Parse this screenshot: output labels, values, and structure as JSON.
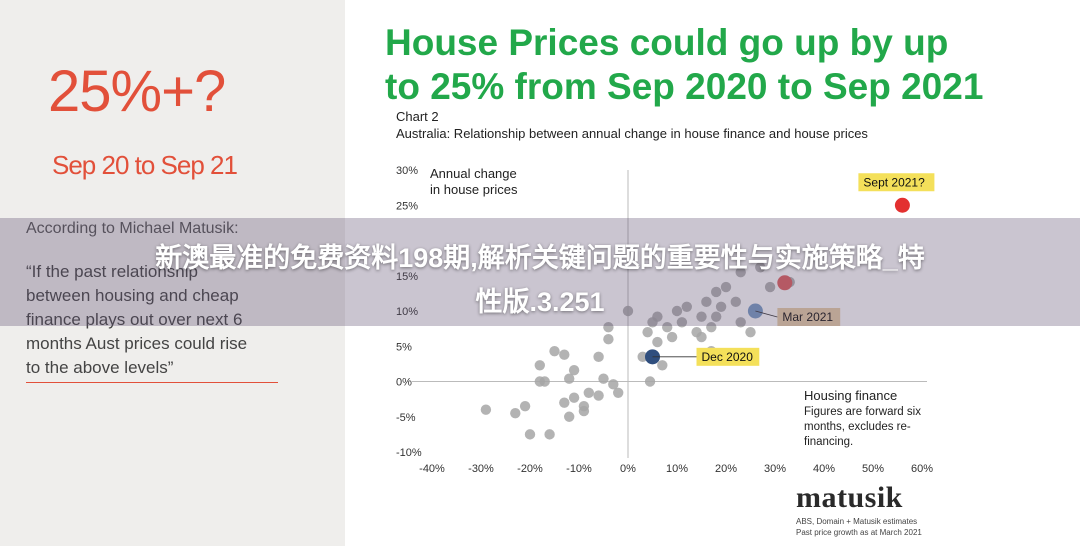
{
  "left": {
    "headline": "25%+?",
    "date_range": "Sep 20 to Sep 21",
    "attribution": "According to Michael Matusik:",
    "quote_lines": [
      "“If the past relationship",
      "between housing and cheap",
      "finance plays out over next 6",
      "months Aust prices could rise",
      "to the above levels”"
    ]
  },
  "title_lines": [
    "House Prices could go up by up",
    "to 25% from Sep 2020 to Sep 2021"
  ],
  "chart_label": "Chart 2",
  "chart_subtitle": "Australia: Relationship between annual change in house finance and house prices",
  "banner_lines": [
    "新澳最准的免费资料198期,解析关键问题的重要性与实施策略_特",
    "性版.3.251"
  ],
  "brand": {
    "name": "matusik",
    "source_lines": [
      "ABS, Domain + Matusik estimates",
      "Past price growth as at March 2021"
    ]
  },
  "colors": {
    "headline_red": "#e2503a",
    "title_green": "#22a84a",
    "grey_points": "#a6a6a6",
    "dec2020": "#2f4e7e",
    "mar2021": "#7a9cc6",
    "sept2021": "#e33030",
    "recent_red": "#e06060",
    "label_yellow": "#f4e05a",
    "label_tan": "#e8cfa8"
  },
  "chart_data": {
    "type": "scatter",
    "ylabel": [
      "Annual change",
      "in house prices"
    ],
    "xlabel": [
      "Housing finance",
      "Figures are forward six",
      "months, excludes re-",
      "financing."
    ],
    "xlim": [
      -40,
      60
    ],
    "ylim": [
      -10,
      30
    ],
    "x_ticks": [
      -40,
      -30,
      -20,
      -10,
      0,
      10,
      20,
      30,
      40,
      50,
      60
    ],
    "x_tick_labels": [
      "-40%",
      "-30%",
      "-20%",
      "-10%",
      "0%",
      "10%",
      "20%",
      "30%",
      "40%",
      "50%",
      "60%"
    ],
    "y_ticks": [
      30,
      25,
      15,
      10,
      5,
      0,
      -5,
      -10
    ],
    "y_tick_labels": [
      "30%",
      "25%",
      "15%",
      "10%",
      "5%",
      "0%",
      "-5%",
      "-10%"
    ],
    "points": [
      {
        "x": -29,
        "y": -4
      },
      {
        "x": -23,
        "y": -4.5
      },
      {
        "x": -21,
        "y": -3.5
      },
      {
        "x": -20,
        "y": -7.5
      },
      {
        "x": -16,
        "y": -7.5
      },
      {
        "x": -18,
        "y": 0
      },
      {
        "x": -17,
        "y": 0
      },
      {
        "x": -18,
        "y": 2.3
      },
      {
        "x": -15,
        "y": 4.3
      },
      {
        "x": -13,
        "y": 3.8
      },
      {
        "x": -11,
        "y": 1.6
      },
      {
        "x": -12,
        "y": 0.4
      },
      {
        "x": -11,
        "y": -2.3
      },
      {
        "x": -13,
        "y": -3
      },
      {
        "x": -9,
        "y": -3.5
      },
      {
        "x": -8,
        "y": -1.6
      },
      {
        "x": -6,
        "y": -2
      },
      {
        "x": -5,
        "y": 0.4
      },
      {
        "x": -2,
        "y": -1.6
      },
      {
        "x": -3,
        "y": -0.4
      },
      {
        "x": -12,
        "y": -5
      },
      {
        "x": -9,
        "y": -4.2
      },
      {
        "x": -6,
        "y": 3.5
      },
      {
        "x": -4,
        "y": 6
      },
      {
        "x": -4,
        "y": 7.7
      },
      {
        "x": 0,
        "y": 10
      },
      {
        "x": 3,
        "y": 3.5
      },
      {
        "x": 4,
        "y": 7
      },
      {
        "x": 5,
        "y": 8.4
      },
      {
        "x": 6,
        "y": 9.2
      },
      {
        "x": 6,
        "y": 5.6
      },
      {
        "x": 7,
        "y": 2.3
      },
      {
        "x": 8,
        "y": 7.7
      },
      {
        "x": 9,
        "y": 6.3
      },
      {
        "x": 10,
        "y": 10
      },
      {
        "x": 11,
        "y": 8.4
      },
      {
        "x": 12,
        "y": 10.6
      },
      {
        "x": 14,
        "y": 7
      },
      {
        "x": 15,
        "y": 6.3
      },
      {
        "x": 15,
        "y": 9.2
      },
      {
        "x": 16,
        "y": 11.3
      },
      {
        "x": 17,
        "y": 7.7
      },
      {
        "x": 18,
        "y": 9.2
      },
      {
        "x": 18,
        "y": 12.7
      },
      {
        "x": 19,
        "y": 10.6
      },
      {
        "x": 20,
        "y": 13.4
      },
      {
        "x": 22,
        "y": 11.3
      },
      {
        "x": 23,
        "y": 15.5
      },
      {
        "x": 23,
        "y": 8.4
      },
      {
        "x": 25,
        "y": 7
      },
      {
        "x": 17,
        "y": 4.3
      },
      {
        "x": 4.5,
        "y": 0
      },
      {
        "x": 27,
        "y": 16.2
      },
      {
        "x": 33,
        "y": 14.1
      },
      {
        "x": 29,
        "y": 13.4
      }
    ],
    "highlights": [
      {
        "label": "Dec 2020",
        "x": 5,
        "y": 3.5,
        "color": "#2f4e7e",
        "tag": "#f4e05a"
      },
      {
        "label": "Mar 2021",
        "x": 26,
        "y": 10,
        "color": "#7a9cc6",
        "tag": "#e8cfa8"
      },
      {
        "label": "",
        "x": 32,
        "y": 14,
        "color": "#e06060",
        "tag": ""
      },
      {
        "label": "Sept 2021?",
        "x": 56,
        "y": 25,
        "color": "#e33030",
        "tag": "#f4e05a"
      }
    ]
  }
}
